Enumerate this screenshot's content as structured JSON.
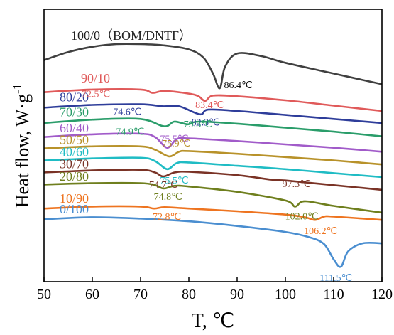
{
  "chart_data": {
    "type": "line",
    "title": "",
    "xlabel": "T, ℃",
    "ylabel": "Heat flow,  W·g⁻¹",
    "xlim": [
      50,
      120
    ],
    "x_ticks": [
      50,
      60,
      70,
      80,
      90,
      100,
      110,
      120
    ],
    "y_ticks_shown": false,
    "grid": false,
    "series": [
      {
        "name": "100/0（BOM/DNTF）",
        "color": "#404040",
        "x": [
          50,
          55,
          60,
          65,
          70,
          75,
          80,
          83,
          85,
          86.4,
          87.5,
          90,
          95,
          100,
          110,
          120
        ],
        "y": [
          14.9,
          15.5,
          15.9,
          16.1,
          16.1,
          16.0,
          15.7,
          15.1,
          13.9,
          12.8,
          14.4,
          15.4,
          15.2,
          14.7,
          13.9,
          13.1
        ],
        "peaks": [
          {
            "x": 86.4,
            "label": "86.4℃"
          }
        ]
      },
      {
        "name": "90/10",
        "color": "#e05a5a",
        "x": [
          50,
          60,
          70,
          72.5,
          75,
          80,
          82,
          83.4,
          85,
          90,
          100,
          110,
          120
        ],
        "y": [
          12.5,
          12.7,
          12.7,
          12.45,
          12.6,
          12.4,
          12.2,
          11.85,
          12.25,
          12.2,
          11.9,
          11.5,
          11.1
        ],
        "peaks": [
          {
            "x": 72.5,
            "label": "72.5℃"
          },
          {
            "x": 83.4,
            "label": "83.4℃"
          }
        ]
      },
      {
        "name": "80/20",
        "color": "#2e3d9a",
        "x": [
          50,
          60,
          70,
          74.6,
          78,
          82.3,
          84,
          90,
          100,
          110,
          120
        ],
        "y": [
          11.35,
          11.55,
          11.6,
          11.45,
          11.45,
          10.85,
          11.2,
          11.1,
          10.8,
          10.5,
          10.2
        ],
        "peaks": [
          {
            "x": 74.6,
            "label": "74.6℃"
          },
          {
            "x": 82.3,
            "label": "82.3℃"
          }
        ]
      },
      {
        "name": "70/30",
        "color": "#2a9d6a",
        "x": [
          50,
          60,
          70,
          74.9,
          77,
          79.8,
          82,
          90,
          100,
          110,
          120
        ],
        "y": [
          10.2,
          10.45,
          10.5,
          9.95,
          10.3,
          10.1,
          10.3,
          10.15,
          9.85,
          9.55,
          9.2
        ],
        "peaks": [
          {
            "x": 74.9,
            "label": "74.9℃"
          },
          {
            "x": 79.8,
            "label": "79.8℃"
          }
        ]
      },
      {
        "name": "60/40",
        "color": "#a15bc9",
        "x": [
          50,
          60,
          70,
          73,
          75.5,
          77.5,
          80,
          90,
          100,
          110,
          120
        ],
        "y": [
          9.15,
          9.35,
          9.4,
          9.15,
          8.35,
          9.0,
          9.05,
          8.85,
          8.6,
          8.35,
          8.05
        ],
        "peaks": [
          {
            "x": 75.5,
            "label": "75.5℃"
          }
        ]
      },
      {
        "name": "50/50",
        "color": "#b8922a",
        "x": [
          50,
          60,
          70,
          73,
          75.9,
          78,
          80,
          90,
          100,
          110,
          120
        ],
        "y": [
          8.3,
          8.45,
          8.45,
          8.2,
          7.7,
          8.05,
          8.1,
          7.9,
          7.65,
          7.4,
          7.1
        ],
        "peaks": [
          {
            "x": 75.9,
            "label": "75.9℃"
          }
        ]
      },
      {
        "name": "40/60",
        "color": "#1fbcc4",
        "x": [
          50,
          60,
          70,
          73,
          75.5,
          77.5,
          80,
          90,
          100,
          110,
          120
        ],
        "y": [
          7.4,
          7.55,
          7.6,
          7.35,
          6.75,
          7.2,
          7.25,
          7.0,
          6.75,
          6.45,
          6.15
        ],
        "peaks": [
          {
            "x": 75.5,
            "label": "75.5℃"
          }
        ]
      },
      {
        "name": "30/70",
        "color": "#7a3326",
        "x": [
          50,
          60,
          70,
          73,
          74.7,
          77,
          80,
          90,
          97.3,
          100,
          110,
          120
        ],
        "y": [
          6.5,
          6.65,
          6.7,
          6.5,
          6.2,
          6.5,
          6.55,
          6.3,
          5.95,
          5.9,
          5.55,
          5.2
        ],
        "peaks": [
          {
            "x": 74.7,
            "label": "74.7℃"
          },
          {
            "x": 97.3,
            "label": "97.3℃"
          }
        ]
      },
      {
        "name": "20/80",
        "color": "#6f7f1e",
        "x": [
          50,
          60,
          70,
          73,
          74.8,
          77,
          80,
          90,
          100,
          102.0,
          104,
          110,
          120
        ],
        "y": [
          5.6,
          5.7,
          5.7,
          5.55,
          5.3,
          5.5,
          5.45,
          5.05,
          4.4,
          3.95,
          4.35,
          4.0,
          3.5
        ],
        "peaks": [
          {
            "x": 74.8,
            "label": "74.8℃"
          },
          {
            "x": 102.0,
            "label": "102.0℃"
          }
        ]
      },
      {
        "name": "10/90",
        "color": "#ee7420",
        "x": [
          50,
          60,
          70,
          72.8,
          75,
          80,
          90,
          100,
          104,
          106.2,
          108,
          110,
          120
        ],
        "y": [
          3.8,
          3.95,
          3.95,
          3.8,
          3.9,
          3.8,
          3.6,
          3.35,
          3.15,
          2.95,
          3.2,
          3.2,
          2.95
        ],
        "peaks": [
          {
            "x": 72.8,
            "label": "72.8℃"
          },
          {
            "x": 106.2,
            "label": "106.2℃"
          }
        ]
      },
      {
        "name": "0/100",
        "color": "#4a8ed0",
        "x": [
          50,
          60,
          70,
          80,
          90,
          100,
          105,
          108,
          110,
          111.5,
          113,
          116,
          120
        ],
        "y": [
          3.0,
          3.15,
          3.05,
          2.85,
          2.5,
          2.05,
          1.65,
          1.15,
          0.0,
          -0.55,
          0.6,
          1.2,
          1.2
        ],
        "peaks": [
          {
            "x": 111.5,
            "label": "111.5℃"
          }
        ]
      }
    ]
  },
  "labels": {
    "xlabel": "T, ℃",
    "ylabel_main": "Heat flow,  W·g",
    "ylabel_sup": "-1"
  }
}
